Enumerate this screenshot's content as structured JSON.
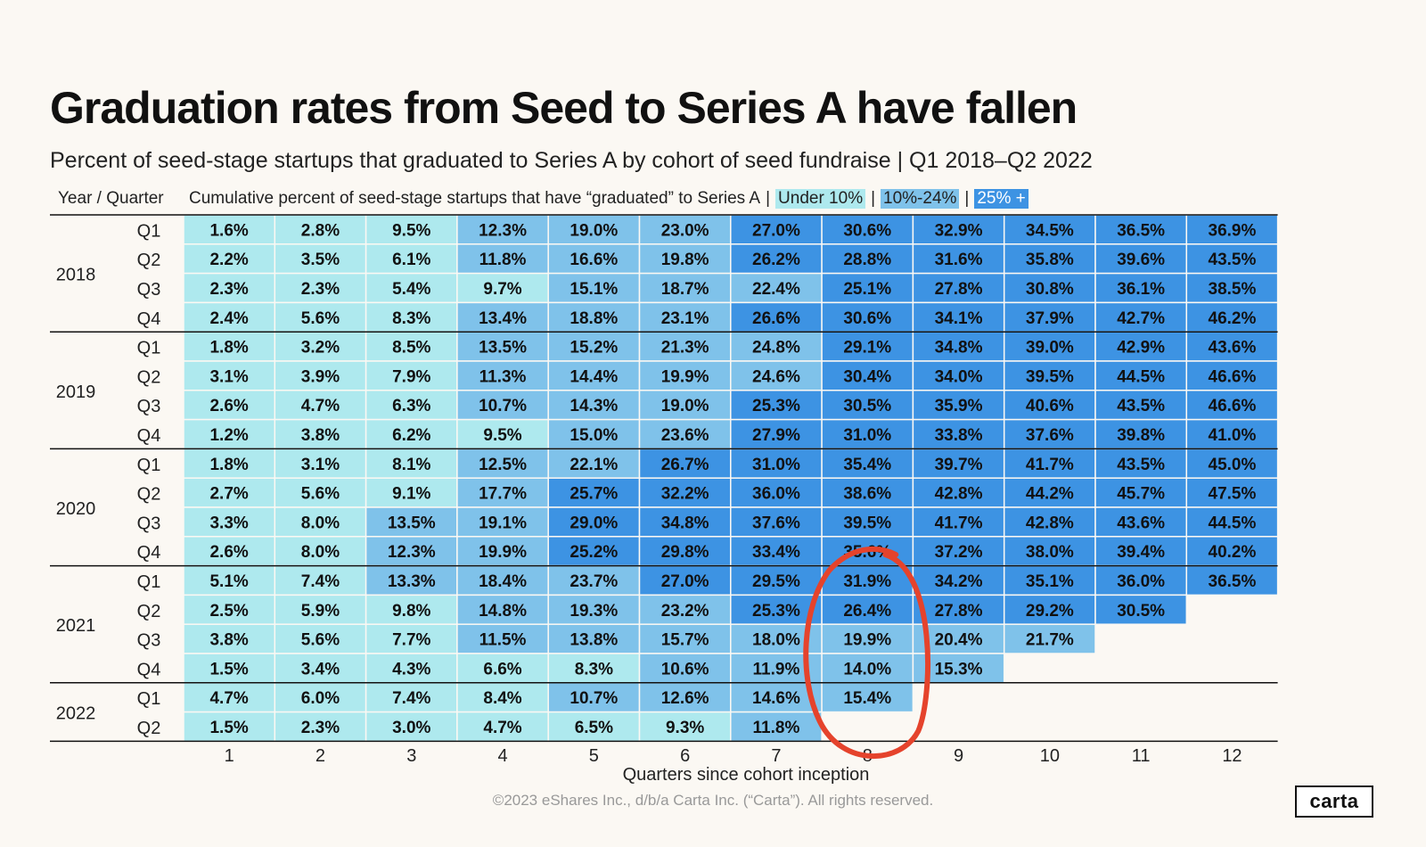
{
  "title": "Graduation rates from Seed to Series A have fallen",
  "subtitle": "Percent of seed-stage startups that graduated to Series A by cohort of seed fundraise | Q1 2018–Q2 2022",
  "header": {
    "year_quarter": "Year / Quarter",
    "description": "Cumulative percent of seed-stage startups that have “graduated” to Series A",
    "legend": [
      {
        "label": "Under 10%",
        "color": "#aee9ee"
      },
      {
        "label": "10%-24%",
        "color": "#7fc2ea"
      },
      {
        "label": "25% +",
        "color": "#3d93e3"
      }
    ]
  },
  "colors": {
    "under10": "#aee9ee",
    "mid": "#7fc2ea",
    "high": "#3d93e3",
    "annotation": "#e5432c"
  },
  "footer": "©2023 eShares Inc., d/b/a Carta Inc. (“Carta”). All rights reserved.",
  "logo": "carta",
  "chart_data": {
    "type": "heatmap",
    "title": "Graduation rates from Seed to Series A have fallen",
    "xlabel": "Quarters since cohort inception",
    "x": [
      1,
      2,
      3,
      4,
      5,
      6,
      7,
      8,
      9,
      10,
      11,
      12
    ],
    "years": [
      {
        "year": "2018",
        "quarters": [
          "Q1",
          "Q2",
          "Q3",
          "Q4"
        ]
      },
      {
        "year": "2019",
        "quarters": [
          "Q1",
          "Q2",
          "Q3",
          "Q4"
        ]
      },
      {
        "year": "2020",
        "quarters": [
          "Q1",
          "Q2",
          "Q3",
          "Q4"
        ]
      },
      {
        "year": "2021",
        "quarters": [
          "Q1",
          "Q2",
          "Q3",
          "Q4"
        ]
      },
      {
        "year": "2022",
        "quarters": [
          "Q1",
          "Q2"
        ]
      }
    ],
    "values": [
      [
        1.6,
        2.8,
        9.5,
        12.3,
        19.0,
        23.0,
        27.0,
        30.6,
        32.9,
        34.5,
        36.5,
        36.9
      ],
      [
        2.2,
        3.5,
        6.1,
        11.8,
        16.6,
        19.8,
        26.2,
        28.8,
        31.6,
        35.8,
        39.6,
        43.5
      ],
      [
        2.3,
        2.3,
        5.4,
        9.7,
        15.1,
        18.7,
        22.4,
        25.1,
        27.8,
        30.8,
        36.1,
        38.5
      ],
      [
        2.4,
        5.6,
        8.3,
        13.4,
        18.8,
        23.1,
        26.6,
        30.6,
        34.1,
        37.9,
        42.7,
        46.2
      ],
      [
        1.8,
        3.2,
        8.5,
        13.5,
        15.2,
        21.3,
        24.8,
        29.1,
        34.8,
        39.0,
        42.9,
        43.6
      ],
      [
        3.1,
        3.9,
        7.9,
        11.3,
        14.4,
        19.9,
        24.6,
        30.4,
        34.0,
        39.5,
        44.5,
        46.6
      ],
      [
        2.6,
        4.7,
        6.3,
        10.7,
        14.3,
        19.0,
        25.3,
        30.5,
        35.9,
        40.6,
        43.5,
        46.6
      ],
      [
        1.2,
        3.8,
        6.2,
        9.5,
        15.0,
        23.6,
        27.9,
        31.0,
        33.8,
        37.6,
        39.8,
        41.0
      ],
      [
        1.8,
        3.1,
        8.1,
        12.5,
        22.1,
        26.7,
        31.0,
        35.4,
        39.7,
        41.7,
        43.5,
        45.0
      ],
      [
        2.7,
        5.6,
        9.1,
        17.7,
        25.7,
        32.2,
        36.0,
        38.6,
        42.8,
        44.2,
        45.7,
        47.5
      ],
      [
        3.3,
        8.0,
        13.5,
        19.1,
        29.0,
        34.8,
        37.6,
        39.5,
        41.7,
        42.8,
        43.6,
        44.5
      ],
      [
        2.6,
        8.0,
        12.3,
        19.9,
        25.2,
        29.8,
        33.4,
        35.6,
        37.2,
        38.0,
        39.4,
        40.2
      ],
      [
        5.1,
        7.4,
        13.3,
        18.4,
        23.7,
        27.0,
        29.5,
        31.9,
        34.2,
        35.1,
        36.0,
        36.5
      ],
      [
        2.5,
        5.9,
        9.8,
        14.8,
        19.3,
        23.2,
        25.3,
        26.4,
        27.8,
        29.2,
        30.5
      ],
      [
        3.8,
        5.6,
        7.7,
        11.5,
        13.8,
        15.7,
        18.0,
        19.9,
        20.4,
        21.7
      ],
      [
        1.5,
        3.4,
        4.3,
        6.6,
        8.3,
        10.6,
        11.9,
        14.0,
        15.3
      ],
      [
        4.7,
        6.0,
        7.4,
        8.4,
        10.7,
        12.6,
        14.6,
        15.4
      ],
      [
        1.5,
        2.3,
        3.0,
        4.7,
        6.5,
        9.3,
        11.8
      ]
    ],
    "annotation": {
      "type": "circle",
      "column": 8,
      "rows": "2021 Q1 – 2022 Q1"
    }
  }
}
